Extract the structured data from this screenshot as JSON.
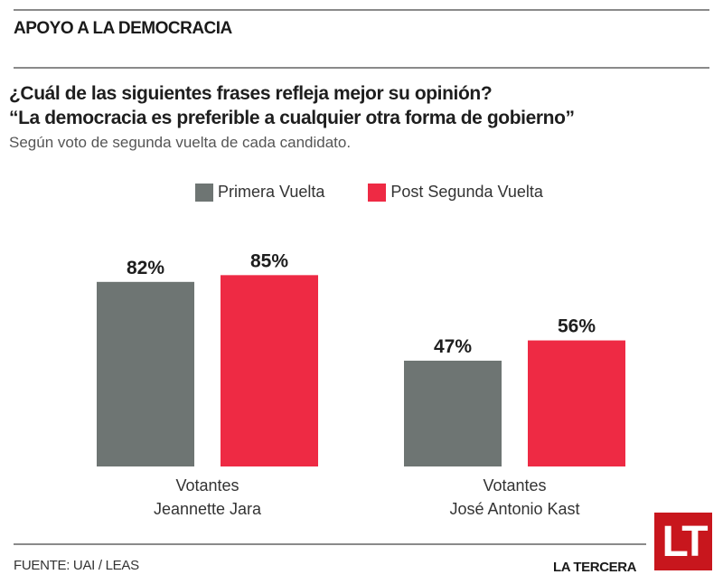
{
  "header": {
    "kicker": "APOYO A LA DEMOCRACIA",
    "question_line1": "¿Cuál de las siguientes frases refleja mejor su opinión?",
    "question_line2": "“La democracia es preferible a cualquier otra forma de gobierno”",
    "subtitle": "Según voto de segunda vuelta de cada candidato."
  },
  "colors": {
    "primera": "#6e7573",
    "post": "#ee2a44",
    "logo": "#c8161d"
  },
  "chart_data": {
    "type": "bar",
    "title": "¿Cuál de las siguientes frases refleja mejor su opinión? “La democracia es preferible a cualquier otra forma de gobierno”",
    "subtitle": "Según voto de segunda vuelta de cada candidato.",
    "categories": [
      {
        "line1": "Votantes",
        "line2": "Jeannette Jara"
      },
      {
        "line1": "Votantes",
        "line2": "José Antonio Kast"
      }
    ],
    "series": [
      {
        "name": "Primera Vuelta",
        "values": [
          82,
          47
        ],
        "labels": [
          "82%",
          "47%"
        ]
      },
      {
        "name": "Post Segunda Vuelta",
        "values": [
          85,
          56
        ],
        "labels": [
          "85%",
          "56%"
        ]
      }
    ],
    "legend_position": "top-center",
    "ylim": [
      0,
      100
    ],
    "grid": false,
    "unit": "%"
  },
  "footer": {
    "source": "FUENTE: UAI / LEAS",
    "brand": "LA TERCERA",
    "logo_text": "LT"
  }
}
